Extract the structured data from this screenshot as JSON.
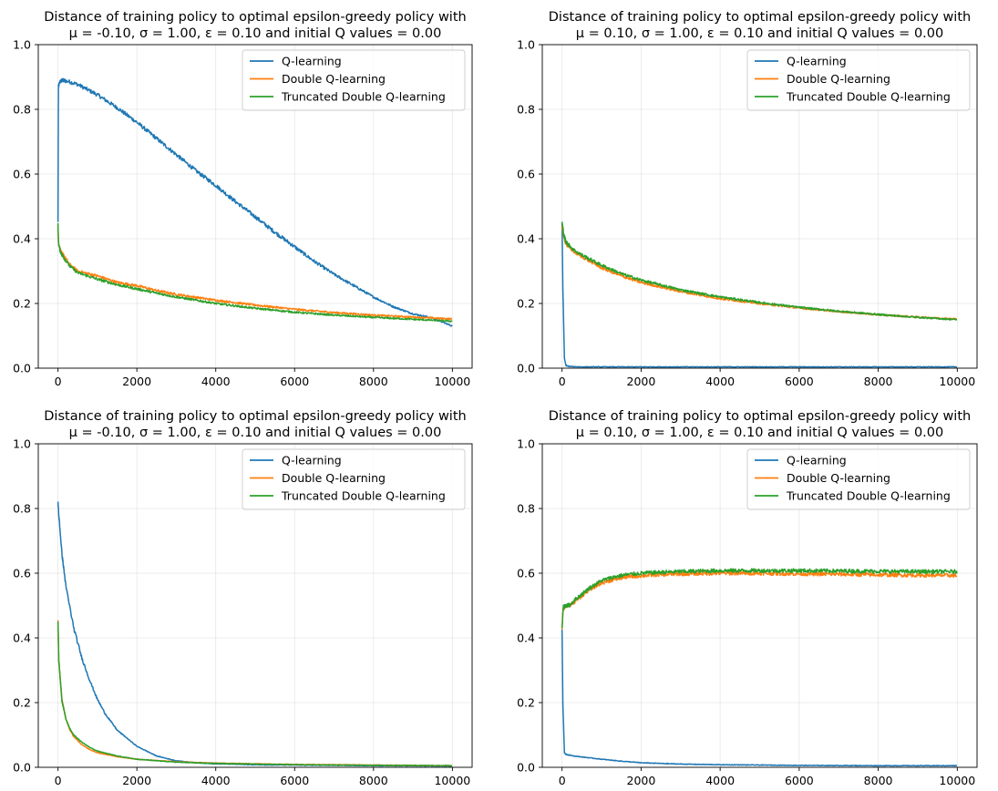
{
  "chart_data": [
    {
      "type": "line",
      "title_line1": "Distance of training policy to optimal epsilon-greedy policy with",
      "title_line2": "μ = -0.10, σ = 1.00, ε = 0.10 and initial Q values = 0.00",
      "xlabel": "",
      "ylabel": "",
      "xlim": [
        -500,
        10500
      ],
      "ylim": [
        0.0,
        1.0
      ],
      "xticks": [
        "0",
        "2000",
        "4000",
        "6000",
        "8000",
        "10000"
      ],
      "yticks": [
        "0.0",
        "0.2",
        "0.4",
        "0.6",
        "0.8",
        "1.0"
      ],
      "grid": true,
      "legend_position": "upper right",
      "series": [
        {
          "name": "Q-learning",
          "color": "#1f77b4",
          "x": [
            0,
            10,
            50,
            100,
            300,
            500,
            1000,
            1500,
            2000,
            2500,
            3000,
            3500,
            4000,
            4500,
            5000,
            5500,
            6000,
            6500,
            7000,
            7500,
            8000,
            8500,
            9000,
            9500,
            10000
          ],
          "y": [
            0.45,
            0.87,
            0.885,
            0.89,
            0.885,
            0.877,
            0.845,
            0.805,
            0.76,
            0.71,
            0.66,
            0.61,
            0.565,
            0.515,
            0.468,
            0.42,
            0.375,
            0.33,
            0.29,
            0.255,
            0.22,
            0.19,
            0.168,
            0.155,
            0.13
          ]
        },
        {
          "name": "Double Q-learning",
          "color": "#ff7f0e",
          "x": [
            0,
            10,
            50,
            100,
            300,
            500,
            1000,
            1500,
            2000,
            2500,
            3000,
            4000,
            5000,
            6000,
            7000,
            8000,
            9000,
            10000
          ],
          "y": [
            0.44,
            0.39,
            0.37,
            0.355,
            0.32,
            0.3,
            0.285,
            0.265,
            0.255,
            0.24,
            0.228,
            0.21,
            0.195,
            0.182,
            0.172,
            0.164,
            0.158,
            0.152
          ]
        },
        {
          "name": "Truncated Double Q-learning",
          "color": "#2ca02c",
          "x": [
            0,
            10,
            50,
            100,
            300,
            500,
            1000,
            1500,
            2000,
            2500,
            3000,
            4000,
            5000,
            6000,
            7000,
            8000,
            9000,
            10000
          ],
          "y": [
            0.45,
            0.39,
            0.365,
            0.35,
            0.315,
            0.295,
            0.275,
            0.258,
            0.245,
            0.232,
            0.22,
            0.2,
            0.185,
            0.173,
            0.164,
            0.157,
            0.151,
            0.145
          ]
        }
      ]
    },
    {
      "type": "line",
      "title_line1": "Distance of training policy to optimal epsilon-greedy policy with",
      "title_line2": "μ = 0.10, σ = 1.00, ε = 0.10 and initial Q values = 0.00",
      "xlabel": "",
      "ylabel": "",
      "xlim": [
        -500,
        10500
      ],
      "ylim": [
        0.0,
        1.0
      ],
      "xticks": [
        "0",
        "2000",
        "4000",
        "6000",
        "8000",
        "10000"
      ],
      "yticks": [
        "0.0",
        "0.2",
        "0.4",
        "0.6",
        "0.8",
        "1.0"
      ],
      "grid": true,
      "legend_position": "upper right",
      "series": [
        {
          "name": "Q-learning",
          "color": "#1f77b4",
          "x": [
            0,
            20,
            60,
            100,
            200,
            500,
            1000,
            2000,
            4000,
            6000,
            8000,
            10000
          ],
          "y": [
            0.45,
            0.25,
            0.03,
            0.008,
            0.005,
            0.004,
            0.004,
            0.004,
            0.004,
            0.004,
            0.004,
            0.004
          ]
        },
        {
          "name": "Double Q-learning",
          "color": "#ff7f0e",
          "x": [
            0,
            50,
            100,
            300,
            500,
            1000,
            1500,
            2000,
            3000,
            4000,
            5000,
            6000,
            7000,
            8000,
            9000,
            10000
          ],
          "y": [
            0.44,
            0.4,
            0.385,
            0.36,
            0.345,
            0.31,
            0.285,
            0.265,
            0.237,
            0.215,
            0.2,
            0.186,
            0.175,
            0.165,
            0.158,
            0.152
          ]
        },
        {
          "name": "Truncated Double Q-learning",
          "color": "#2ca02c",
          "x": [
            0,
            50,
            100,
            300,
            500,
            1000,
            1500,
            2000,
            3000,
            4000,
            5000,
            6000,
            7000,
            8000,
            9000,
            10000
          ],
          "y": [
            0.45,
            0.41,
            0.39,
            0.365,
            0.35,
            0.318,
            0.292,
            0.272,
            0.242,
            0.22,
            0.203,
            0.188,
            0.176,
            0.166,
            0.157,
            0.15
          ]
        }
      ]
    },
    {
      "type": "line",
      "title_line1": "Distance of training policy to optimal epsilon-greedy policy with",
      "title_line2": "μ = -0.10, σ = 1.00, ε = 0.10 and initial Q values = 0.00",
      "xlabel": "",
      "ylabel": "",
      "xlim": [
        -500,
        10500
      ],
      "ylim": [
        0.0,
        1.0
      ],
      "xticks": [
        "0",
        "2000",
        "4000",
        "6000",
        "8000",
        "10000"
      ],
      "yticks": [
        "0.0",
        "0.2",
        "0.4",
        "0.6",
        "0.8",
        "1.0"
      ],
      "grid": true,
      "legend_position": "upper right",
      "series": [
        {
          "name": "Q-learning",
          "color": "#1f77b4",
          "x": [
            0,
            20,
            100,
            200,
            400,
            600,
            800,
            1000,
            1200,
            1500,
            2000,
            2500,
            3000,
            3500,
            4000,
            5000,
            6000,
            7000,
            8000,
            9000,
            10000
          ],
          "y": [
            0.82,
            0.78,
            0.66,
            0.56,
            0.43,
            0.34,
            0.27,
            0.21,
            0.165,
            0.115,
            0.065,
            0.035,
            0.02,
            0.014,
            0.011,
            0.008,
            0.007,
            0.006,
            0.005,
            0.005,
            0.004
          ]
        },
        {
          "name": "Double Q-learning",
          "color": "#ff7f0e",
          "x": [
            0,
            20,
            100,
            200,
            300,
            400,
            600,
            800,
            1000,
            1500,
            2000,
            3000,
            4000,
            5000,
            6000,
            8000,
            10000
          ],
          "y": [
            0.45,
            0.33,
            0.21,
            0.15,
            0.115,
            0.095,
            0.07,
            0.055,
            0.045,
            0.033,
            0.025,
            0.017,
            0.013,
            0.011,
            0.009,
            0.007,
            0.005
          ]
        },
        {
          "name": "Truncated Double Q-learning",
          "color": "#2ca02c",
          "x": [
            0,
            20,
            100,
            200,
            300,
            400,
            600,
            800,
            1000,
            1500,
            2000,
            3000,
            4000,
            5000,
            6000,
            8000,
            10000
          ],
          "y": [
            0.45,
            0.33,
            0.205,
            0.15,
            0.12,
            0.1,
            0.078,
            0.062,
            0.05,
            0.035,
            0.025,
            0.016,
            0.012,
            0.01,
            0.008,
            0.006,
            0.005
          ]
        }
      ]
    },
    {
      "type": "line",
      "title_line1": "Distance of training policy to optimal epsilon-greedy policy with",
      "title_line2": "μ = 0.10, σ = 1.00, ε = 0.10 and initial Q values = 0.00",
      "xlabel": "",
      "ylabel": "",
      "xlim": [
        -500,
        10500
      ],
      "ylim": [
        0.0,
        1.0
      ],
      "xticks": [
        "0",
        "2000",
        "4000",
        "6000",
        "8000",
        "10000"
      ],
      "yticks": [
        "0.0",
        "0.2",
        "0.4",
        "0.6",
        "0.8",
        "1.0"
      ],
      "grid": true,
      "legend_position": "upper right",
      "series": [
        {
          "name": "Q-learning",
          "color": "#1f77b4",
          "x": [
            0,
            20,
            60,
            100,
            300,
            500,
            1000,
            1500,
            2000,
            3000,
            4000,
            5000,
            6000,
            8000,
            10000
          ],
          "y": [
            0.43,
            0.2,
            0.045,
            0.04,
            0.035,
            0.032,
            0.025,
            0.019,
            0.014,
            0.01,
            0.008,
            0.007,
            0.006,
            0.005,
            0.005
          ]
        },
        {
          "name": "Double Q-learning",
          "color": "#ff7f0e",
          "x": [
            0,
            30,
            100,
            200,
            300,
            500,
            700,
            1000,
            1300,
            1600,
            2000,
            2500,
            3000,
            4000,
            5000,
            6000,
            7000,
            8000,
            9000,
            10000
          ],
          "y": [
            0.43,
            0.49,
            0.5,
            0.5,
            0.51,
            0.53,
            0.55,
            0.57,
            0.58,
            0.588,
            0.592,
            0.596,
            0.598,
            0.6,
            0.6,
            0.598,
            0.597,
            0.595,
            0.594,
            0.593
          ]
        },
        {
          "name": "Truncated Double Q-learning",
          "color": "#2ca02c",
          "x": [
            0,
            30,
            100,
            200,
            300,
            500,
            700,
            1000,
            1300,
            1600,
            2000,
            2500,
            3000,
            4000,
            5000,
            6000,
            7000,
            8000,
            9000,
            10000
          ],
          "y": [
            0.43,
            0.495,
            0.5,
            0.502,
            0.515,
            0.535,
            0.555,
            0.577,
            0.588,
            0.595,
            0.6,
            0.603,
            0.605,
            0.608,
            0.608,
            0.608,
            0.607,
            0.606,
            0.605,
            0.605
          ]
        }
      ]
    }
  ]
}
